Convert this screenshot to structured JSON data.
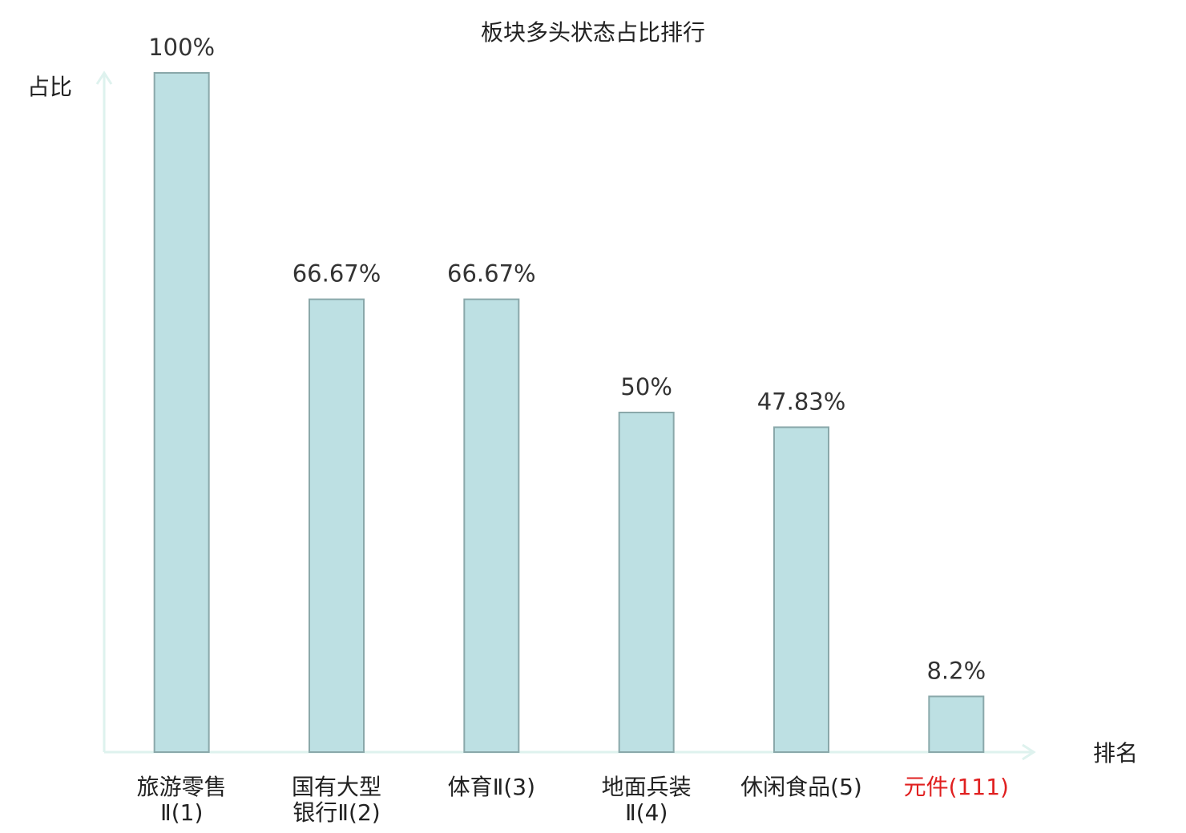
{
  "chart_data": {
    "type": "bar",
    "title": "板块多头状态占比排行",
    "y_label": "占比",
    "x_label": "排名",
    "categories": [
      "旅游零售\nⅡ(1)",
      "国有大型\n银行Ⅱ(2)",
      "体育Ⅱ(3)",
      "地面兵装\nⅡ(4)",
      "休闲食品(5)",
      "元件(111)"
    ],
    "label_colors": [
      "#222222",
      "#222222",
      "#222222",
      "#222222",
      "#222222",
      "#e02020"
    ],
    "values": [
      100,
      66.67,
      66.67,
      50,
      47.83,
      8.2
    ],
    "value_labels": [
      "100%",
      "66.67%",
      "66.67%",
      "50%",
      "47.83%",
      "8.2%"
    ],
    "color": "#bde0e3",
    "edge_color": "#8aa8aa",
    "axis_color": "#def2ee",
    "ylim": [
      0,
      100
    ],
    "grid": false
  }
}
